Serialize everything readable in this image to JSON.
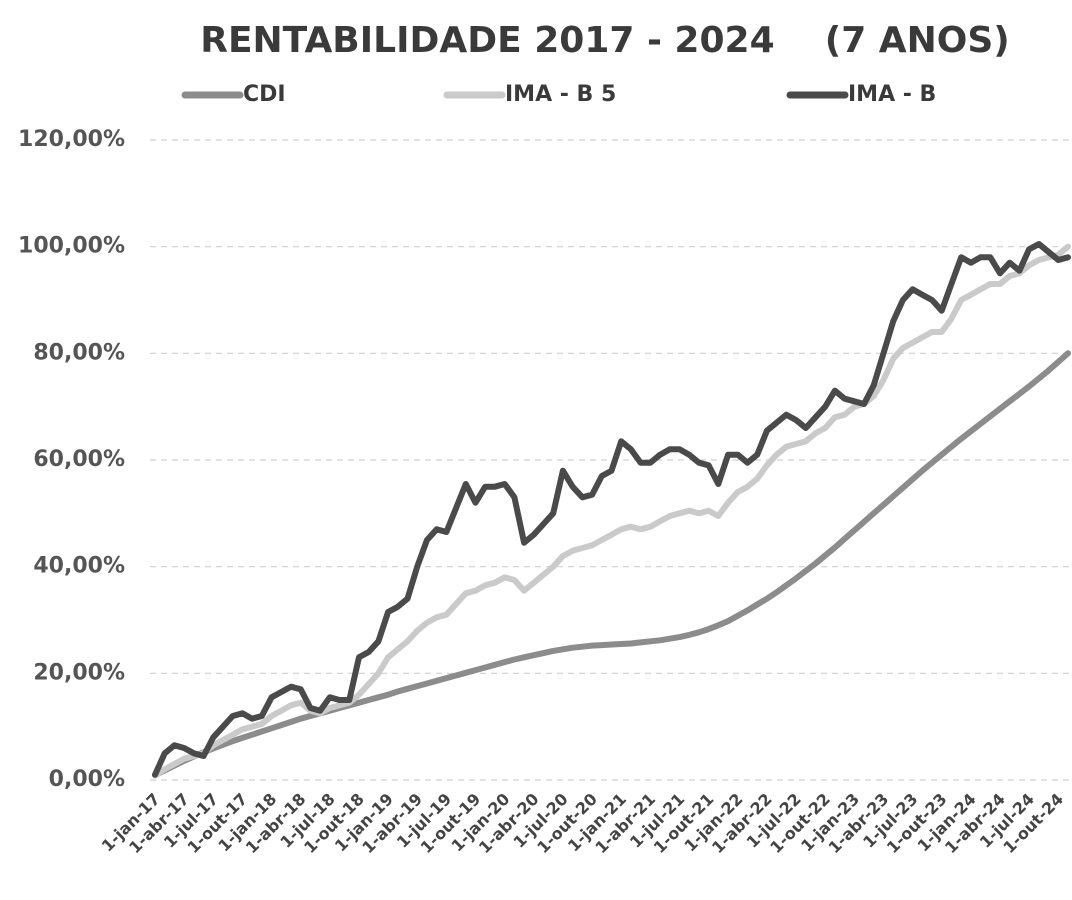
{
  "chart_data": {
    "type": "line",
    "title": "RENTABILIDADE 2017 - 2024    (7 ANOS)",
    "categories": [
      "1-jan-17",
      null,
      null,
      "1-abr-17",
      null,
      null,
      "1-jul-17",
      null,
      null,
      "1-out-17",
      null,
      null,
      "1-jan-18",
      null,
      null,
      "1-abr-18",
      null,
      null,
      "1-jul-18",
      null,
      null,
      "1-out-18",
      null,
      null,
      "1-jan-19",
      null,
      null,
      "1-abr-19",
      null,
      null,
      "1-jul-19",
      null,
      null,
      "1-out-19",
      null,
      null,
      "1-jan-20",
      null,
      null,
      "1-abr-20",
      null,
      null,
      "1-jul-20",
      null,
      null,
      "1-out-20",
      null,
      null,
      "1-jan-21",
      null,
      null,
      "1-abr-21",
      null,
      null,
      "1-jul-21",
      null,
      null,
      "1-out-21",
      null,
      null,
      "1-jan-22",
      null,
      null,
      "1-abr-22",
      null,
      null,
      "1-jul-22",
      null,
      null,
      "1-out-22",
      null,
      null,
      "1-jan-23",
      null,
      null,
      "1-abr-23",
      null,
      null,
      "1-jul-23",
      null,
      null,
      "1-out-23",
      null,
      null,
      "1-jan-24",
      null,
      null,
      "1-abr-24",
      null,
      null,
      "1-jul-24",
      null,
      null,
      "1-out-24",
      null
    ],
    "series": [
      {
        "name": "CDI",
        "color": "#8c8c8c",
        "values": [
          0.9,
          1.8,
          2.7,
          3.6,
          4.4,
          5.2,
          5.9,
          6.6,
          7.3,
          7.9,
          8.5,
          9.1,
          9.7,
          10.3,
          10.9,
          11.5,
          12.0,
          12.5,
          13.0,
          13.5,
          14.0,
          14.5,
          15.0,
          15.5,
          16.0,
          16.6,
          17.1,
          17.6,
          18.1,
          18.6,
          19.1,
          19.6,
          20.1,
          20.6,
          21.1,
          21.6,
          22.1,
          22.6,
          23.0,
          23.4,
          23.8,
          24.2,
          24.5,
          24.8,
          25.0,
          25.2,
          25.3,
          25.4,
          25.5,
          25.6,
          25.8,
          26.0,
          26.2,
          26.5,
          26.8,
          27.2,
          27.7,
          28.3,
          29.0,
          29.8,
          30.8,
          31.8,
          32.9,
          34.0,
          35.2,
          36.5,
          37.8,
          39.2,
          40.6,
          42.1,
          43.6,
          45.2,
          46.8,
          48.4,
          50.0,
          51.6,
          53.2,
          54.8,
          56.4,
          58.0,
          59.5,
          61.0,
          62.5,
          64.0,
          65.4,
          66.8,
          68.2,
          69.6,
          71.0,
          72.4,
          73.8,
          75.3,
          76.8,
          78.4,
          80.0
        ]
      },
      {
        "name": "IMA - B 5",
        "color": "#cacaca",
        "values": [
          0.8,
          2,
          3,
          4,
          4.5,
          5,
          6.5,
          7.5,
          8.5,
          9.5,
          10,
          10.5,
          12,
          13,
          14,
          14.5,
          13,
          12.5,
          13.5,
          14,
          14.5,
          16,
          18,
          20,
          23,
          24.5,
          26,
          28,
          29.5,
          30.5,
          31,
          33,
          35,
          35.5,
          36.5,
          37,
          38,
          37.5,
          35.5,
          37,
          38.5,
          40,
          42,
          43,
          43.5,
          44,
          45,
          46,
          47,
          47.5,
          47,
          47.5,
          48.5,
          49.5,
          50,
          50.5,
          50,
          50.5,
          49.5,
          52,
          54,
          55,
          56.5,
          59,
          61,
          62.5,
          63,
          63.5,
          65,
          66,
          68,
          68.5,
          70,
          70.5,
          72,
          75,
          79,
          81,
          82,
          83,
          84,
          84,
          86.5,
          90,
          91,
          92,
          93,
          93,
          94.5,
          95,
          96.5,
          97.5,
          98,
          98.5,
          100
        ]
      },
      {
        "name": "IMA - B",
        "color": "#4a4a4a",
        "values": [
          1,
          5,
          6.5,
          6,
          5,
          4.5,
          8,
          10,
          12,
          12.5,
          11.5,
          12,
          15.5,
          16.5,
          17.5,
          17,
          13.5,
          13,
          15.5,
          15,
          15,
          23,
          24,
          26,
          31.5,
          32.5,
          34,
          40,
          45,
          47,
          46.5,
          51,
          55.5,
          52,
          55,
          55,
          55.5,
          53,
          44.5,
          46,
          48,
          50,
          58,
          55,
          53,
          53.5,
          57,
          58,
          63.5,
          62,
          59.5,
          59.5,
          61,
          62,
          62,
          61,
          59.5,
          59,
          55.5,
          61,
          61,
          59.5,
          61,
          65.5,
          67,
          68.5,
          67.5,
          66,
          68,
          70,
          73,
          71.5,
          71,
          70.5,
          74,
          80,
          86,
          90,
          92,
          91,
          90,
          88,
          93,
          98,
          97,
          98,
          98,
          95,
          97,
          95.5,
          99.5,
          100.5,
          99,
          97.5,
          98
        ]
      }
    ],
    "ylim": [
      0,
      120
    ],
    "yticks": [
      {
        "value": 0,
        "label": "0,00%"
      },
      {
        "value": 20,
        "label": "20,00%"
      },
      {
        "value": 40,
        "label": "40,00%"
      },
      {
        "value": 60,
        "label": "60,00%"
      },
      {
        "value": 80,
        "label": "80,00%"
      },
      {
        "value": 100,
        "label": "100,00%"
      },
      {
        "value": 120,
        "label": "120,00%"
      }
    ],
    "grid": true
  }
}
